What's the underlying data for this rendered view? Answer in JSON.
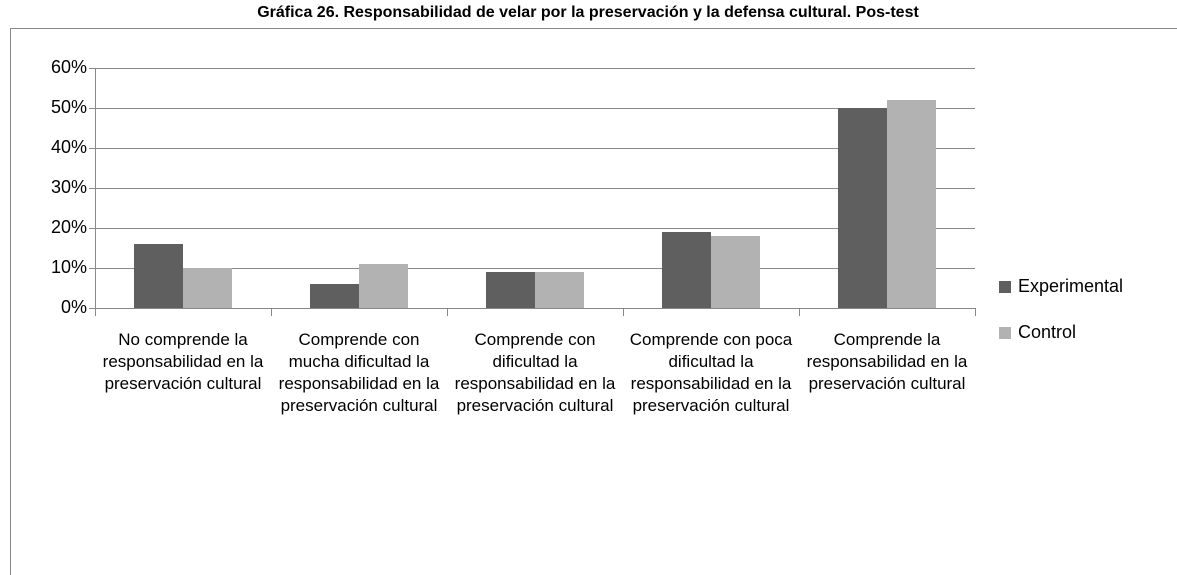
{
  "chart_data": {
    "type": "bar",
    "title": "Gráfica 26. Responsabilidad de velar por la preservación y la defensa cultural. Pos-test",
    "categories": [
      "No comprende la responsabilidad en la preservación cultural",
      "Comprende con mucha dificultad la responsabilidad en la preservación cultural",
      "Comprende con dificultad la responsabilidad en la preservación cultural",
      "Comprende con poca dificultad la responsabilidad en la preservación cultural",
      "Comprende la responsabilidad en la preservación cultural"
    ],
    "series": [
      {
        "name": "Experimental",
        "color": "#5f5f5f",
        "values": [
          16,
          6,
          9,
          19,
          50
        ]
      },
      {
        "name": "Control",
        "color": "#b2b2b2",
        "values": [
          10,
          11,
          9,
          18,
          52
        ]
      }
    ],
    "ylim": [
      0,
      60
    ],
    "yticks": [
      {
        "value": 0,
        "label": "0%"
      },
      {
        "value": 10,
        "label": "10%"
      },
      {
        "value": 20,
        "label": "20%"
      },
      {
        "value": 30,
        "label": "30%"
      },
      {
        "value": 40,
        "label": "40%"
      },
      {
        "value": 50,
        "label": "50%"
      },
      {
        "value": 60,
        "label": "60%"
      }
    ],
    "grid": true,
    "legend": "right"
  }
}
